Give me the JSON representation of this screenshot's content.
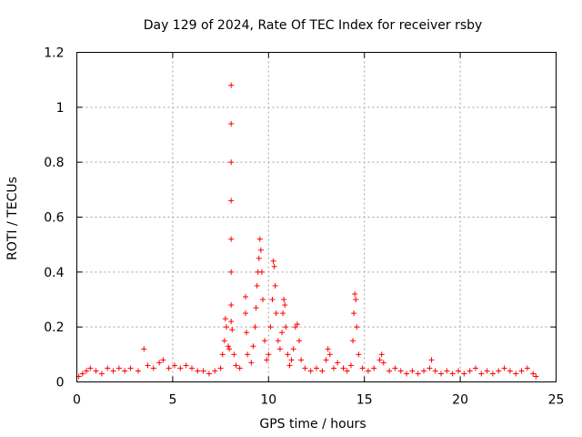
{
  "chart_data": {
    "type": "scatter",
    "title": "Day 129 of 2024, Rate Of TEC Index for receiver rsby",
    "xlabel": "GPS time / hours",
    "ylabel": "ROTI / TECUs",
    "xlim": [
      0,
      25
    ],
    "ylim": [
      0,
      1.2
    ],
    "x_ticks": [
      0,
      5,
      10,
      15,
      20,
      25
    ],
    "x_tick_labels": [
      "0",
      "5",
      "10",
      "15",
      "20",
      "25"
    ],
    "y_ticks": [
      0,
      0.2,
      0.4,
      0.6,
      0.8,
      1,
      1.2
    ],
    "y_tick_labels": [
      "0",
      "0.2",
      "0.4",
      "0.6",
      "0.8",
      "1",
      "1.2"
    ],
    "grid": true,
    "marker": "+",
    "color": "#ff0000",
    "series": [
      {
        "points": [
          [
            0.1,
            0.02
          ],
          [
            0.3,
            0.03
          ],
          [
            0.5,
            0.04
          ],
          [
            0.7,
            0.05
          ],
          [
            1.0,
            0.04
          ],
          [
            1.3,
            0.03
          ],
          [
            1.6,
            0.05
          ],
          [
            1.9,
            0.04
          ],
          [
            2.2,
            0.05
          ],
          [
            2.5,
            0.04
          ],
          [
            2.8,
            0.05
          ],
          [
            3.2,
            0.04
          ],
          [
            3.5,
            0.12
          ],
          [
            3.7,
            0.06
          ],
          [
            4.0,
            0.05
          ],
          [
            4.3,
            0.07
          ],
          [
            4.5,
            0.08
          ],
          [
            4.8,
            0.05
          ],
          [
            5.1,
            0.06
          ],
          [
            5.4,
            0.05
          ],
          [
            5.7,
            0.06
          ],
          [
            6.0,
            0.05
          ],
          [
            6.3,
            0.04
          ],
          [
            6.6,
            0.04
          ],
          [
            6.9,
            0.03
          ],
          [
            7.2,
            0.04
          ],
          [
            7.5,
            0.05
          ],
          [
            7.6,
            0.1
          ],
          [
            7.7,
            0.15
          ],
          [
            7.75,
            0.23
          ],
          [
            7.8,
            0.2
          ],
          [
            7.9,
            0.13
          ],
          [
            7.95,
            0.12
          ],
          [
            8.05,
            1.08
          ],
          [
            8.05,
            0.94
          ],
          [
            8.05,
            0.8
          ],
          [
            8.05,
            0.66
          ],
          [
            8.05,
            0.52
          ],
          [
            8.05,
            0.4
          ],
          [
            8.05,
            0.28
          ],
          [
            8.05,
            0.22
          ],
          [
            8.1,
            0.19
          ],
          [
            8.2,
            0.1
          ],
          [
            8.3,
            0.06
          ],
          [
            8.5,
            0.05
          ],
          [
            8.8,
            0.31
          ],
          [
            8.8,
            0.25
          ],
          [
            8.85,
            0.18
          ],
          [
            8.9,
            0.1
          ],
          [
            9.1,
            0.07
          ],
          [
            9.2,
            0.13
          ],
          [
            9.3,
            0.2
          ],
          [
            9.35,
            0.27
          ],
          [
            9.4,
            0.35
          ],
          [
            9.45,
            0.4
          ],
          [
            9.5,
            0.45
          ],
          [
            9.55,
            0.52
          ],
          [
            9.6,
            0.48
          ],
          [
            9.65,
            0.4
          ],
          [
            9.7,
            0.3
          ],
          [
            9.8,
            0.15
          ],
          [
            9.9,
            0.08
          ],
          [
            10.0,
            0.1
          ],
          [
            10.1,
            0.2
          ],
          [
            10.2,
            0.3
          ],
          [
            10.25,
            0.44
          ],
          [
            10.3,
            0.42
          ],
          [
            10.35,
            0.35
          ],
          [
            10.4,
            0.25
          ],
          [
            10.5,
            0.15
          ],
          [
            10.6,
            0.12
          ],
          [
            10.7,
            0.18
          ],
          [
            10.75,
            0.25
          ],
          [
            10.8,
            0.3
          ],
          [
            10.85,
            0.28
          ],
          [
            10.9,
            0.2
          ],
          [
            11.0,
            0.1
          ],
          [
            11.1,
            0.06
          ],
          [
            11.2,
            0.08
          ],
          [
            11.3,
            0.12
          ],
          [
            11.4,
            0.2
          ],
          [
            11.5,
            0.21
          ],
          [
            11.6,
            0.15
          ],
          [
            11.7,
            0.08
          ],
          [
            11.9,
            0.05
          ],
          [
            12.2,
            0.04
          ],
          [
            12.5,
            0.05
          ],
          [
            12.8,
            0.04
          ],
          [
            13.0,
            0.08
          ],
          [
            13.1,
            0.12
          ],
          [
            13.2,
            0.1
          ],
          [
            13.4,
            0.05
          ],
          [
            13.6,
            0.07
          ],
          [
            13.9,
            0.05
          ],
          [
            14.1,
            0.04
          ],
          [
            14.3,
            0.06
          ],
          [
            14.4,
            0.15
          ],
          [
            14.45,
            0.25
          ],
          [
            14.5,
            0.32
          ],
          [
            14.55,
            0.3
          ],
          [
            14.6,
            0.2
          ],
          [
            14.7,
            0.1
          ],
          [
            14.9,
            0.05
          ],
          [
            15.2,
            0.04
          ],
          [
            15.5,
            0.05
          ],
          [
            15.8,
            0.08
          ],
          [
            15.9,
            0.1
          ],
          [
            16.0,
            0.07
          ],
          [
            16.3,
            0.04
          ],
          [
            16.6,
            0.05
          ],
          [
            16.9,
            0.04
          ],
          [
            17.2,
            0.03
          ],
          [
            17.5,
            0.04
          ],
          [
            17.8,
            0.03
          ],
          [
            18.1,
            0.04
          ],
          [
            18.4,
            0.05
          ],
          [
            18.5,
            0.08
          ],
          [
            18.7,
            0.04
          ],
          [
            19.0,
            0.03
          ],
          [
            19.3,
            0.04
          ],
          [
            19.6,
            0.03
          ],
          [
            19.9,
            0.04
          ],
          [
            20.2,
            0.03
          ],
          [
            20.5,
            0.04
          ],
          [
            20.8,
            0.05
          ],
          [
            21.1,
            0.03
          ],
          [
            21.4,
            0.04
          ],
          [
            21.7,
            0.03
          ],
          [
            22.0,
            0.04
          ],
          [
            22.3,
            0.05
          ],
          [
            22.6,
            0.04
          ],
          [
            22.9,
            0.03
          ],
          [
            23.2,
            0.04
          ],
          [
            23.5,
            0.05
          ],
          [
            23.8,
            0.03
          ],
          [
            23.95,
            0.02
          ]
        ]
      }
    ]
  }
}
